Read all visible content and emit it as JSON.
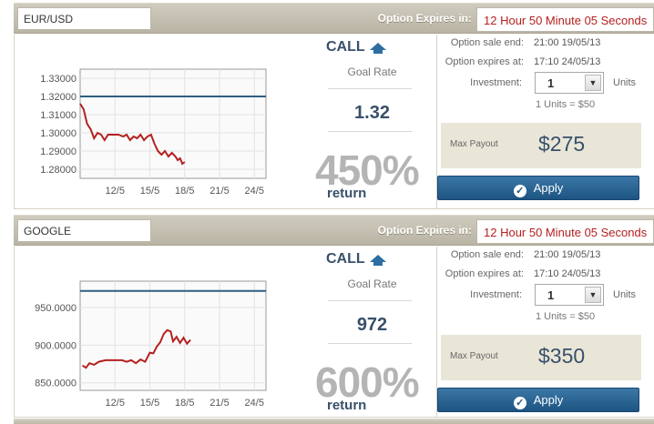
{
  "options": [
    {
      "asset": "EUR/USD",
      "expires_label": "Option Expires in:",
      "timer": "12 Hour 50 Minute 05 Seconds",
      "direction": "CALL",
      "goal_label": "Goal Rate",
      "goal_value": "1.32",
      "return_pct": "450%",
      "return_label": "return",
      "sale_end_label": "Option sale end:",
      "sale_end_value": "21:00 19/05/13",
      "expires_at_label": "Option expires at:",
      "expires_at_value": "17:10 24/05/13",
      "investment_label": "Investment:",
      "investment_value": "1",
      "units_label": "Units",
      "units_eq": "1 Units = $50",
      "max_payout_label": "Max Payout",
      "max_payout_value": "$275",
      "apply_label": "Apply",
      "icons": {
        "direction": "up-arrow-icon",
        "apply": "check-circle-icon",
        "dropdown": "chevron-down-icon"
      },
      "chart_data": {
        "type": "line",
        "y_ticks": [
          "1.33000",
          "1.32000",
          "1.31000",
          "1.30000",
          "1.29000",
          "1.28000"
        ],
        "x_ticks": [
          "12/5",
          "15/5",
          "18/5",
          "21/5",
          "24/5"
        ],
        "ylim": [
          1.275,
          1.335
        ],
        "xlim": [
          9,
          25
        ],
        "goal_line": 1.32,
        "series": [
          {
            "values": [
              [
                9.0,
                1.316
              ],
              [
                9.3,
                1.313
              ],
              [
                9.6,
                1.305
              ],
              [
                9.9,
                1.302
              ],
              [
                10.2,
                1.297
              ],
              [
                10.5,
                1.3
              ],
              [
                10.8,
                1.299
              ],
              [
                11.1,
                1.296
              ],
              [
                11.4,
                1.299
              ],
              [
                11.8,
                1.299
              ],
              [
                12.3,
                1.299
              ],
              [
                12.7,
                1.298
              ],
              [
                13.0,
                1.299
              ],
              [
                13.3,
                1.296
              ],
              [
                13.6,
                1.298
              ],
              [
                13.9,
                1.297
              ],
              [
                14.2,
                1.299
              ],
              [
                14.5,
                1.296
              ],
              [
                14.8,
                1.298
              ],
              [
                15.1,
                1.299
              ],
              [
                15.4,
                1.294
              ],
              [
                15.7,
                1.29
              ],
              [
                16.0,
                1.288
              ],
              [
                16.3,
                1.29
              ],
              [
                16.6,
                1.287
              ],
              [
                16.9,
                1.289
              ],
              [
                17.2,
                1.287
              ],
              [
                17.4,
                1.285
              ],
              [
                17.6,
                1.286
              ],
              [
                17.8,
                1.283
              ],
              [
                18.0,
                1.284
              ]
            ]
          }
        ],
        "colors": {
          "series": "#b52020",
          "goal_line": "#2f5f80"
        }
      }
    },
    {
      "asset": "GOOGLE",
      "expires_label": "Option Expires in:",
      "timer": "12 Hour 50 Minute 05 Seconds",
      "direction": "CALL",
      "goal_label": "Goal Rate",
      "goal_value": "972",
      "return_pct": "600%",
      "return_label": "return",
      "sale_end_label": "Option sale end:",
      "sale_end_value": "21:00 19/05/13",
      "expires_at_label": "Option expires at:",
      "expires_at_value": "17:10 24/05/13",
      "investment_label": "Investment:",
      "investment_value": "1",
      "units_label": "Units",
      "units_eq": "1 Units = $50",
      "max_payout_label": "Max Payout",
      "max_payout_value": "$350",
      "apply_label": "Apply",
      "icons": {
        "direction": "up-arrow-icon",
        "apply": "check-circle-icon",
        "dropdown": "chevron-down-icon"
      },
      "chart_data": {
        "type": "line",
        "y_ticks": [
          "950.0000",
          "900.0000",
          "850.0000"
        ],
        "x_ticks": [
          "12/5",
          "15/5",
          "18/5",
          "21/5",
          "24/5"
        ],
        "ylim": [
          840,
          985
        ],
        "xlim": [
          9,
          25
        ],
        "goal_line": 972,
        "series": [
          {
            "values": [
              [
                9.2,
                873
              ],
              [
                9.5,
                870
              ],
              [
                9.8,
                876
              ],
              [
                10.2,
                874
              ],
              [
                10.6,
                878
              ],
              [
                11.2,
                880
              ],
              [
                12.0,
                880
              ],
              [
                12.6,
                880
              ],
              [
                13.0,
                878
              ],
              [
                13.4,
                880
              ],
              [
                13.8,
                876
              ],
              [
                14.2,
                881
              ],
              [
                14.6,
                878
              ],
              [
                15.0,
                890
              ],
              [
                15.3,
                889
              ],
              [
                15.6,
                898
              ],
              [
                15.9,
                904
              ],
              [
                16.2,
                915
              ],
              [
                16.5,
                920
              ],
              [
                16.8,
                918
              ],
              [
                17.0,
                905
              ],
              [
                17.3,
                911
              ],
              [
                17.6,
                903
              ],
              [
                17.9,
                910
              ],
              [
                18.2,
                902
              ],
              [
                18.5,
                907
              ]
            ]
          }
        ],
        "colors": {
          "series": "#b52020",
          "goal_line": "#2f5f80"
        }
      }
    }
  ]
}
